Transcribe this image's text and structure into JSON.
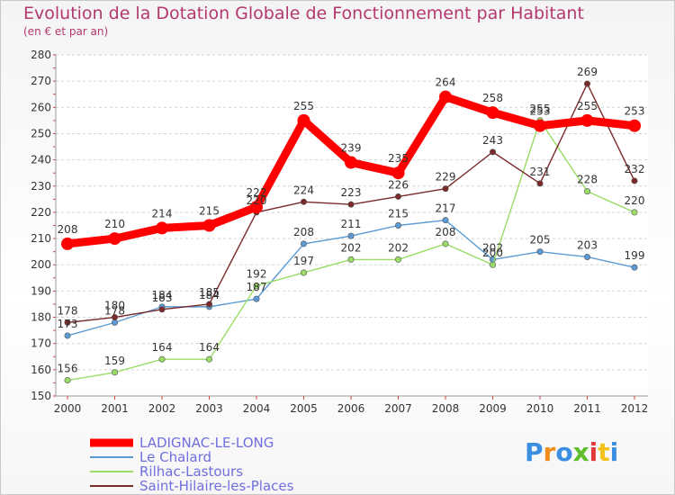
{
  "chart_data": {
    "type": "line",
    "title": "Evolution de la Dotation Globale de Fonctionnement par Habitant",
    "subtitle": "(en € et par an)",
    "x": [
      "2000",
      "2001",
      "2002",
      "2003",
      "2004",
      "2005",
      "2006",
      "2007",
      "2008",
      "2009",
      "2010",
      "2011",
      "2012"
    ],
    "ylim": [
      150,
      280
    ],
    "yticks": [
      150,
      160,
      170,
      180,
      190,
      200,
      210,
      220,
      230,
      240,
      250,
      260,
      270,
      280
    ],
    "grid": "horizontal-dashed",
    "legend_position": "bottom-left",
    "series": [
      {
        "name": "LADIGNAC-LE-LONG",
        "color": "#ff0000",
        "emphasis": true,
        "values": [
          208,
          210,
          214,
          215,
          222,
          255,
          239,
          235,
          264,
          258,
          253,
          255,
          253
        ]
      },
      {
        "name": "Le Chalard",
        "color": "#5b9bd5",
        "values": [
          173,
          178,
          184,
          184,
          187,
          208,
          211,
          215,
          217,
          202,
          205,
          203,
          199
        ]
      },
      {
        "name": "Rilhac-Lastours",
        "color": "#99dd66",
        "values": [
          156,
          159,
          164,
          164,
          192,
          197,
          202,
          202,
          208,
          200,
          255,
          228,
          220
        ]
      },
      {
        "name": "Saint-Hilaire-les-Places",
        "color": "#7a2a2a",
        "values": [
          178,
          180,
          183,
          185,
          220,
          224,
          223,
          226,
          229,
          243,
          231,
          269,
          232
        ]
      }
    ]
  },
  "logo": {
    "letters": [
      "P",
      "r",
      "o",
      "x",
      "i",
      "t",
      "i"
    ],
    "colors": [
      "#3b8fe0",
      "#f28c1b",
      "#3b8fe0",
      "#5fbf2a",
      "#e23a3a",
      "#f2c21b",
      "#3b8fe0"
    ]
  }
}
